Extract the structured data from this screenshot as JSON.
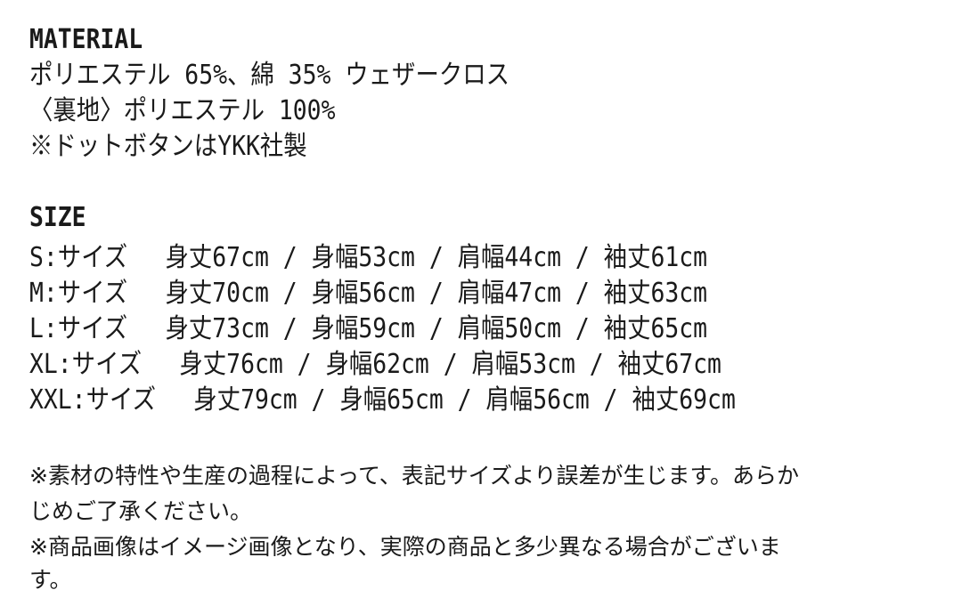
{
  "material": {
    "heading": "MATERIAL",
    "lines": [
      "ポリエステル 65%、綿 35% ウェザークロス",
      "〈裏地〉ポリエステル 100%",
      "※ドットボタンはYKK社製"
    ]
  },
  "size": {
    "heading": "SIZE",
    "rows": [
      "S:サイズ　 身丈67cm / 身幅53cm / 肩幅44cm / 袖丈61cm",
      "M:サイズ　 身丈70cm / 身幅56cm / 肩幅47cm / 袖丈63cm",
      "L:サイズ　 身丈73cm / 身幅59cm / 肩幅50cm / 袖丈65cm",
      "XL:サイズ　 身丈76cm / 身幅62cm / 肩幅53cm / 袖丈67cm",
      "XXL:サイズ　 身丈79cm / 身幅65cm / 肩幅56cm / 袖丈69cm"
    ]
  },
  "notes": [
    "※素材の特性や生産の過程によって、表記サイズより誤差が生じます。あらか",
    "じめご了承ください。",
    "※商品画像はイメージ画像となり、実際の商品と多少異なる場合がございま",
    "す。"
  ]
}
